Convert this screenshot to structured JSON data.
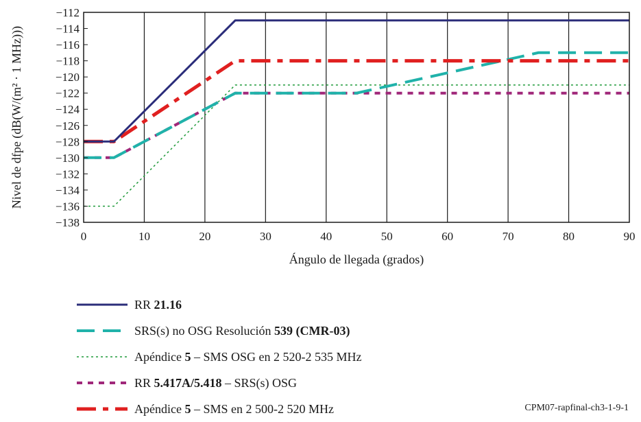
{
  "chart_data": {
    "type": "line",
    "xlabel": "Ángulo de llegada (grados)",
    "ylabel": "Nivel de dfpe (dB(W/(m² · 1 MHz)))",
    "xlim": [
      0,
      90
    ],
    "ylim": [
      -138,
      -112
    ],
    "xticks": [
      0,
      10,
      20,
      30,
      40,
      50,
      60,
      70,
      80,
      90
    ],
    "yticks": [
      -112,
      -114,
      -116,
      -118,
      -120,
      -122,
      -124,
      -126,
      -128,
      -130,
      -132,
      -134,
      -136,
      -138
    ],
    "grid": "vertical",
    "series": [
      {
        "name": "RR 21.16",
        "color": "#2b2d7a",
        "style": "solid",
        "x": [
          0,
          5,
          25,
          90
        ],
        "y": [
          -128,
          -128,
          -113,
          -113
        ]
      },
      {
        "name": "SRS(s) no OSG Resolución 539 (CMR-03)",
        "color": "#20b2aa",
        "style": "longdash",
        "x": [
          0,
          5,
          25,
          45,
          75,
          90
        ],
        "y": [
          -130,
          -130,
          -122,
          -122,
          -117,
          -117
        ]
      },
      {
        "name": "Apéndice 5 – SMS OSG en 2 520-2 535 MHz",
        "color": "#1f9a3a",
        "style": "dotted",
        "x": [
          0,
          5,
          25,
          90
        ],
        "y": [
          -136,
          -136,
          -121,
          -121
        ]
      },
      {
        "name": "RR 5.417A/5.418 – SRS(s) OSG",
        "color": "#a0287a",
        "style": "dash",
        "x": [
          0,
          5,
          25,
          90
        ],
        "y": [
          -130,
          -130,
          -122,
          -122
        ]
      },
      {
        "name": "Apéndice 5 – SMS en 2 500-2 520 MHz",
        "color": "#e02020",
        "style": "dashdot",
        "x": [
          0,
          5,
          25,
          90
        ],
        "y": [
          -128,
          -128,
          -118,
          -118
        ]
      }
    ]
  },
  "legend": [
    {
      "pre": "RR ",
      "bold": "21.16",
      "post": ""
    },
    {
      "pre": "SRS(s) no OSG Resolución ",
      "bold": "539 (CMR-03)",
      "post": ""
    },
    {
      "pre": "Apéndice ",
      "bold": "5",
      "post": " – SMS OSG en 2 520-2 535 MHz"
    },
    {
      "pre": "RR ",
      "bold": "5.417A/5.418",
      "post": " – SRS(s) OSG"
    },
    {
      "pre": "Apéndice ",
      "bold": "5",
      "post": " – SMS en 2 500-2 520 MHz"
    }
  ],
  "footnote": "CPM07-rapfinal-ch3-1-9-1"
}
